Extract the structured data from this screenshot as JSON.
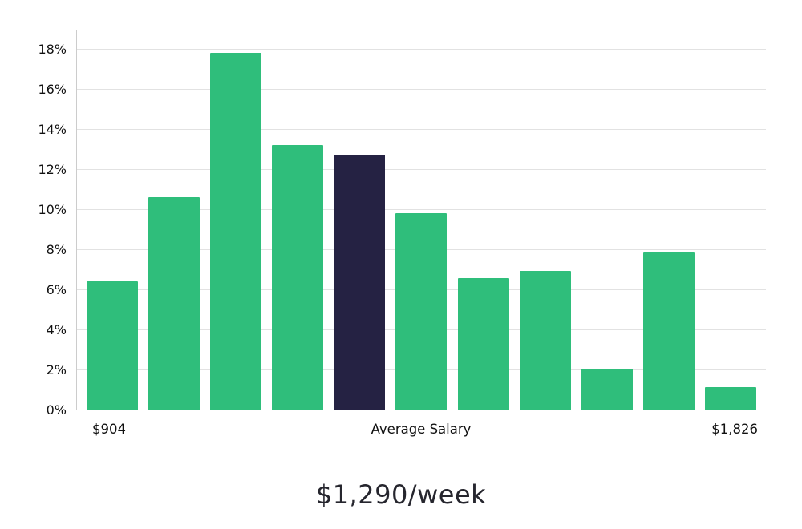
{
  "chart_data": {
    "type": "bar",
    "title": "$1,290/week",
    "values": [
      6.45,
      10.65,
      17.85,
      13.25,
      12.75,
      9.85,
      6.6,
      6.95,
      2.1,
      7.9,
      1.15
    ],
    "highlight_index": 4,
    "bar_color": "#2fbe7b",
    "highlight_color": "#252243",
    "ylim": [
      0,
      18
    ],
    "ytick_step": 2,
    "ytick_labels": [
      "0%",
      "2%",
      "4%",
      "6%",
      "8%",
      "10%",
      "12%",
      "14%",
      "16%",
      "18%"
    ],
    "x_axis_labels": {
      "left": "$904",
      "center": "Average Salary",
      "right": "$1,826"
    },
    "grid": true,
    "legend_position": "none",
    "xlabel": "",
    "ylabel": ""
  }
}
